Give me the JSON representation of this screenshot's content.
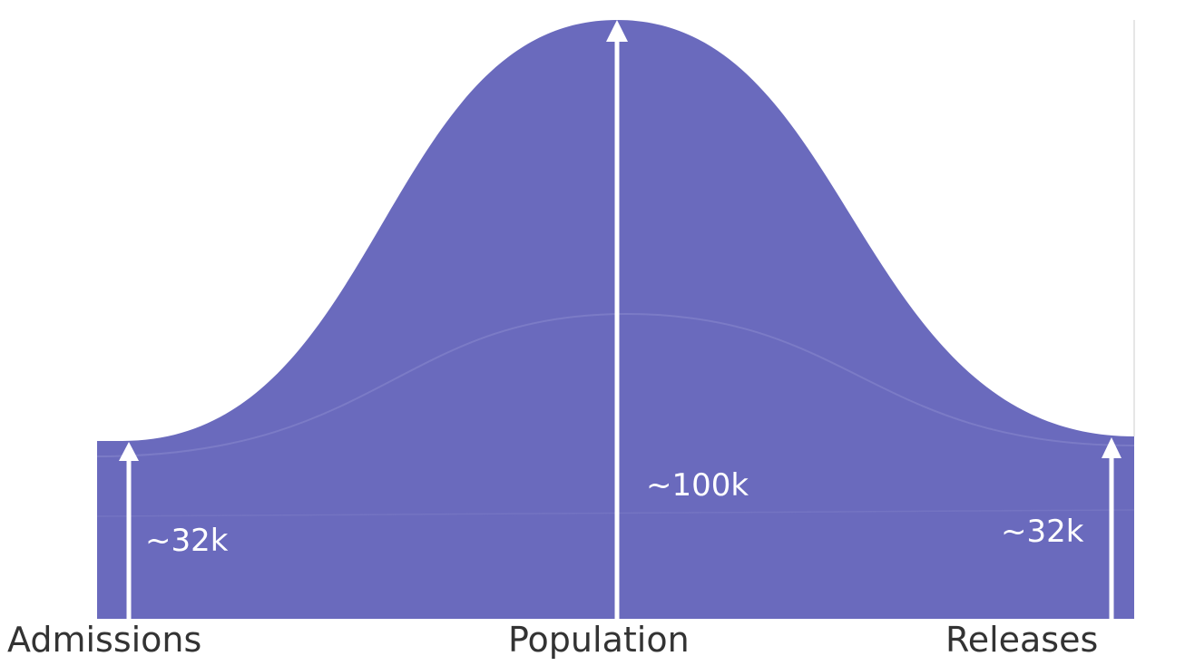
{
  "diagram": {
    "fill_color": "#6a6abd",
    "line_color": "#ffffff",
    "stages": [
      {
        "label": "Admissions",
        "value_label": "~32k"
      },
      {
        "label": "Population",
        "value_label": "~100k"
      },
      {
        "label": "Releases",
        "value_label": "~32k"
      }
    ]
  }
}
